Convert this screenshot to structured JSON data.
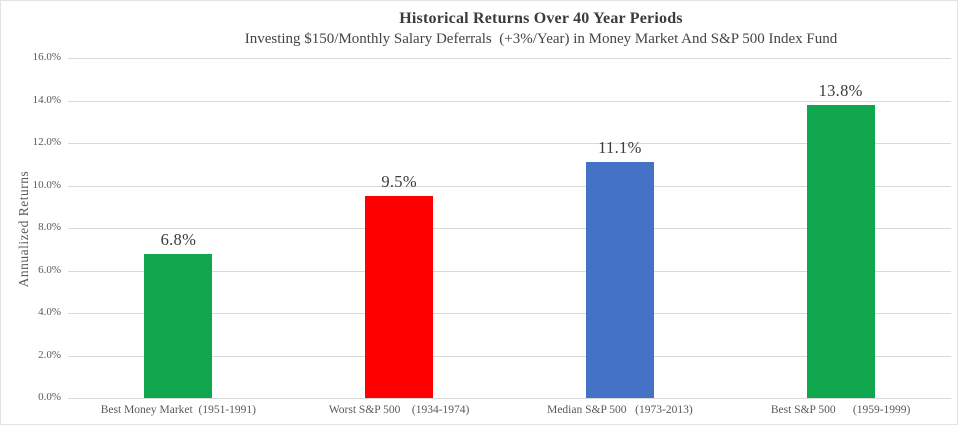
{
  "header": {
    "title": "Historical Returns Over 40 Year Periods",
    "subtitle": "Investing $150/Monthly Salary Deferrals  (+3%/Year) in Money Market And S&P 500 Index Fund"
  },
  "chart_data": {
    "type": "bar",
    "title": "Historical Returns Over 40 Year Periods",
    "subtitle": "Investing $150/Monthly Salary Deferrals  (+3%/Year) in Money Market And S&P 500 Index Fund",
    "ylabel": "Annualized Returns",
    "xlabel": "",
    "categories": [
      "Best Money Market  (1951-1991)",
      "Worst S&P 500    (1934-1974)",
      "Median S&P 500   (1973-2013)",
      "Best S&P 500      (1959-1999)"
    ],
    "values": [
      6.8,
      9.5,
      11.1,
      13.8
    ],
    "data_labels": [
      "6.8%",
      "9.5%",
      "11.1%",
      "13.8%"
    ],
    "bar_colors": [
      "#10a64d",
      "#ff0000",
      "#4472c4",
      "#10a64d"
    ],
    "ylim": [
      0,
      16
    ],
    "ytick_step": 2,
    "ytick_labels": [
      "0.0%",
      "2.0%",
      "4.0%",
      "6.0%",
      "8.0%",
      "10.0%",
      "12.0%",
      "14.0%",
      "16.0%"
    ],
    "grid": true,
    "legend": "none",
    "colors": {
      "gridline": "#d9d9d9",
      "axis_text": "#595959",
      "title_text": "#3b3b3b",
      "data_label_text": "#3b3b3b"
    }
  }
}
